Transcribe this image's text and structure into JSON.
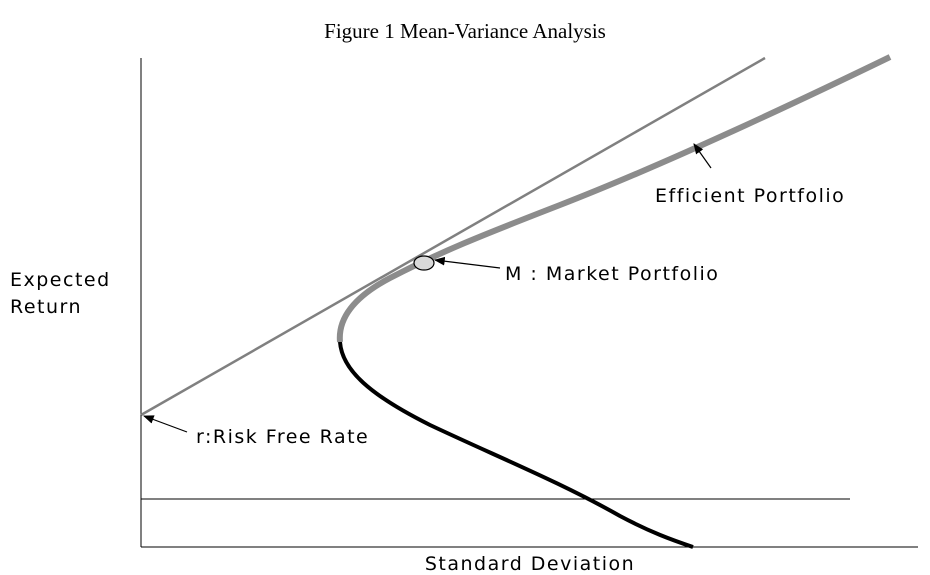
{
  "title": "Figure 1   Mean-Variance Analysis",
  "y_axis_label": [
    "Expected",
    "Return"
  ],
  "x_axis_label": "Standard Deviation",
  "annotations": {
    "efficient_portfolio": "Efficient Portfolio",
    "market_portfolio": "M : Market Portfolio",
    "risk_free_rate": "r:Risk Free Rate"
  }
}
